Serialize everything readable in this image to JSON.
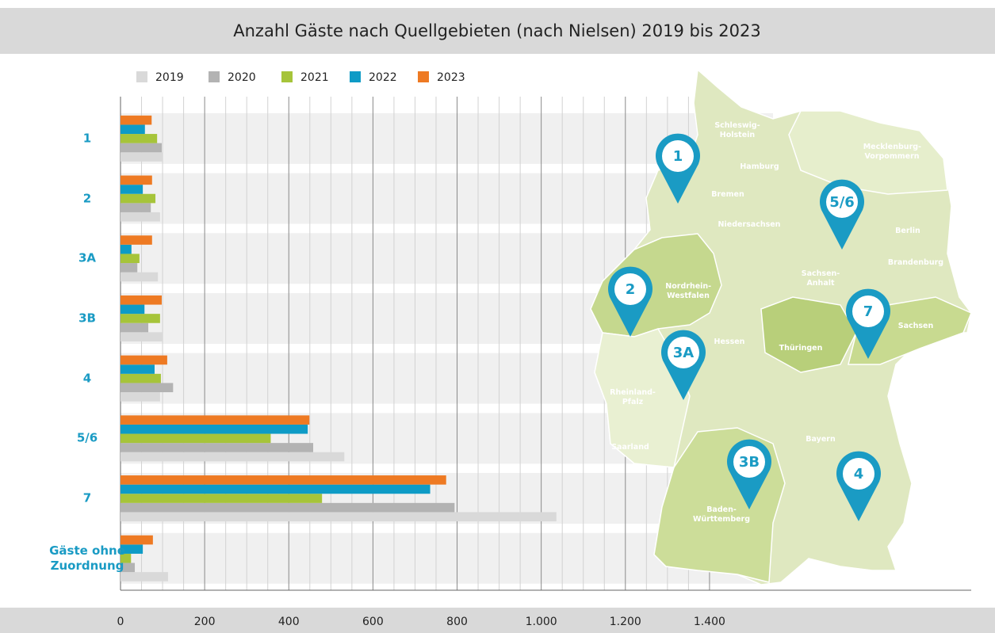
{
  "chart_data": {
    "type": "bar",
    "orientation": "horizontal",
    "title": "Anzahl Gäste nach Quellgebieten (nach Nielsen) 2019 bis 2023",
    "categories": [
      "1",
      "2",
      "3A",
      "3B",
      "4",
      "5/6",
      "7",
      "Gäste ohne Zuordnung"
    ],
    "series": [
      {
        "name": "2019",
        "color": "#d9d9d9",
        "values": [
          100,
          94,
          89,
          100,
          94,
          532,
          1036,
          113
        ]
      },
      {
        "name": "2020",
        "color": "#b3b3b3",
        "values": [
          98,
          72,
          40,
          66,
          125,
          458,
          794,
          34
        ]
      },
      {
        "name": "2021",
        "color": "#a6c43a",
        "values": [
          87,
          83,
          45,
          94,
          96,
          357,
          479,
          25
        ]
      },
      {
        "name": "2022",
        "color": "#0e9bc6",
        "values": [
          58,
          53,
          26,
          57,
          81,
          445,
          736,
          53
        ]
      },
      {
        "name": "2023",
        "color": "#ee7a23",
        "values": [
          74,
          75,
          75,
          98,
          111,
          449,
          774,
          77
        ]
      }
    ],
    "xlim": [
      0,
      2022
    ],
    "xticks": [
      0,
      200,
      400,
      600,
      800,
      {
        "value": 1000,
        "label": "1.000"
      },
      {
        "value": 1200,
        "label": "1.200"
      },
      {
        "value": 1400,
        "label": "1.400"
      }
    ],
    "grid": true,
    "legend": "top"
  },
  "map": {
    "regions": [
      "Schleswig-Holstein",
      "Hamburg",
      "Bremen",
      "Niedersachsen",
      "Mecklenburg-Vorpommern",
      "Berlin",
      "Brandenburg",
      "Sachsen-Anhalt",
      "Nordrhein-Westfalen",
      "Hessen",
      "Thüringen",
      "Sachsen",
      "Rheinland-Pfalz",
      "Saarland",
      "Bayern",
      "Baden-Württemberg"
    ],
    "pins": [
      "1",
      "5/6",
      "2",
      "7",
      "3A",
      "3B",
      "4"
    ]
  }
}
